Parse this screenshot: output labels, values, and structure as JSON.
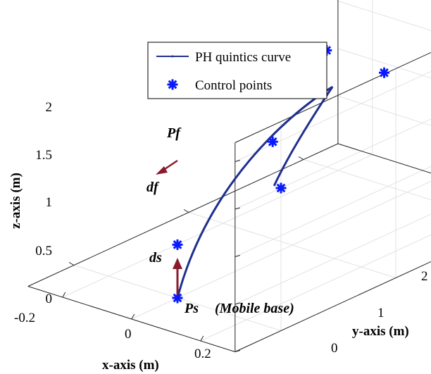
{
  "chart_data": {
    "type": "line",
    "view": "3d",
    "xlabel": "x-axis (m)",
    "ylabel": "y-axis (m)",
    "zlabel": "z-axis (m)",
    "x_ticks": [
      "-0.2",
      "0",
      "0.2"
    ],
    "y_ticks": [
      "0",
      "1",
      "2"
    ],
    "z_ticks": [
      "0",
      "0.5",
      "1",
      "1.5",
      "2"
    ],
    "grid": true,
    "box": true,
    "legend_position": "top-center",
    "colors": {
      "curve": "#1f2f8f",
      "points": "#0a1aff",
      "arrows": "#8b1a2b"
    },
    "series": [
      {
        "name": "PH quintics curve",
        "kind": "line",
        "points_xyz": [
          [
            0,
            0,
            0
          ],
          [
            0.15,
            0.78,
            0.9
          ],
          [
            -0.11,
            1.02,
            1.78
          ],
          [
            -0.22,
            0.35,
            1.68
          ],
          [
            -0.28,
            0.0,
            1.5
          ]
        ]
      },
      {
        "name": "Control points",
        "kind": "marker",
        "points_xyz": [
          [
            0,
            0,
            0
          ],
          [
            0,
            0,
            0.56
          ],
          [
            0.1,
            1.13,
            0.9
          ],
          [
            -0.1,
            1.5,
            1.65
          ],
          [
            0.1,
            1.6,
            1.6
          ],
          [
            -0.3,
            0,
            1.5
          ]
        ]
      }
    ],
    "annotations": {
      "ps": "Ps",
      "mobile_base": "(Mobile base)",
      "pf": "Pf",
      "ds": "ds",
      "df": "df"
    }
  }
}
